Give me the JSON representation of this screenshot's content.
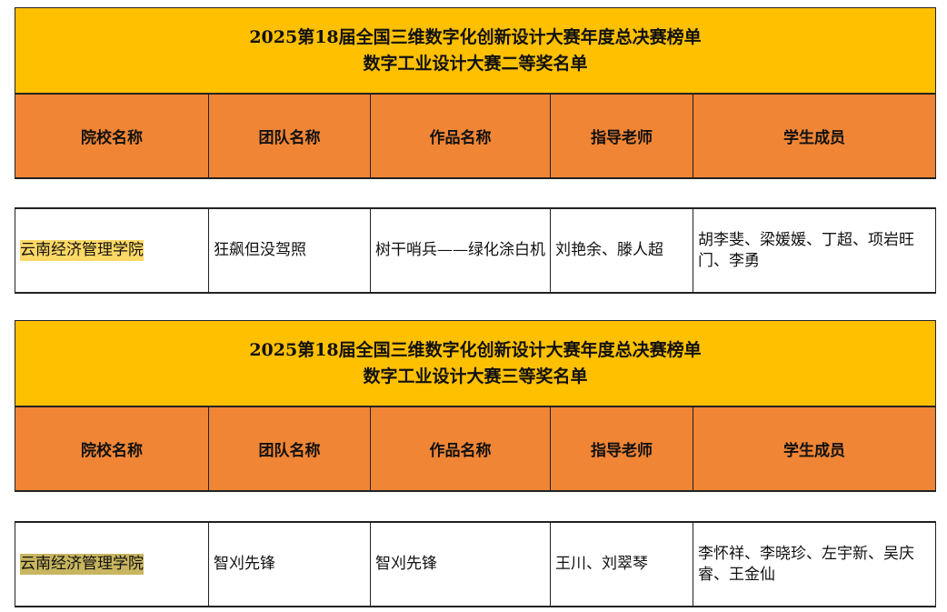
{
  "colors": {
    "title_bg": "#FFC000",
    "header_bg": "#F08535",
    "highlight_1": "#FFD966",
    "highlight_2": "#C8B560"
  },
  "columns": [
    "院校名称",
    "团队名称",
    "作品名称",
    "指导老师",
    "学生成员"
  ],
  "sections": [
    {
      "title_line1": "2025第18届全国三维数字化创新设计大赛年度总决赛榜单",
      "title_line2": "数字工业设计大赛二等奖名单",
      "row": {
        "school": "云南经济管理学院",
        "team": "狂飙但没驾照",
        "work": "树干哨兵——绿化涂白机",
        "advisors": "刘艳余、滕人超",
        "members": "胡李斐、梁媛媛、丁超、项岩旺门、李勇"
      }
    },
    {
      "title_line1": "2025第18届全国三维数字化创新设计大赛年度总决赛榜单",
      "title_line2": "数字工业设计大赛三等奖名单",
      "row": {
        "school": "云南经济管理学院",
        "team": "智刈先锋",
        "work": "智刈先锋",
        "advisors": "王川、刘翠琴",
        "members": "李怀祥、李晓珍、左宇新、吴庆睿、王金仙"
      }
    }
  ]
}
